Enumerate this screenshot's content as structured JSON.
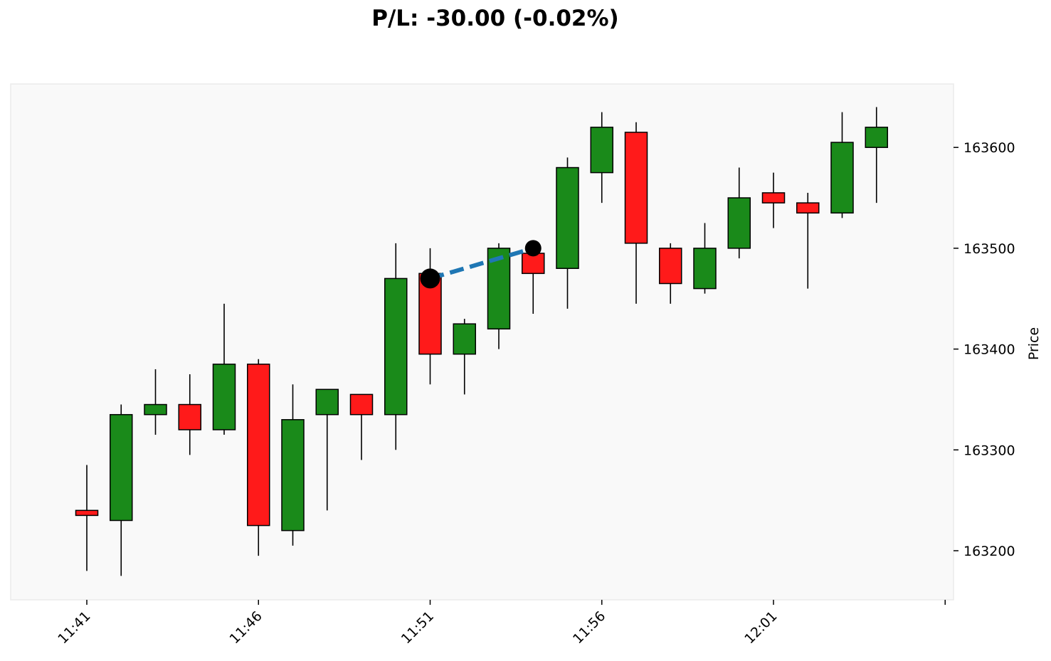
{
  "chart_data": {
    "type": "candlestick",
    "title": "P/L: -30.00 (-0.02%)",
    "xlabel": "",
    "ylabel": "Price",
    "ylim": [
      163150,
      163665
    ],
    "y_ticks": [
      163200,
      163300,
      163400,
      163500,
      163600
    ],
    "x_tick_labels": [
      "11:41",
      "11:46",
      "11:51",
      "11:56",
      "12:01"
    ],
    "grid": false,
    "colors": {
      "up": "#1a8a1a",
      "down": "#ff1a1a",
      "trade_line": "#1f77b4",
      "marker": "#000000",
      "plot_bg": "#f9f9f9"
    },
    "candles": [
      {
        "time": "11:41",
        "open": 163240,
        "high": 163285,
        "low": 163180,
        "close": 163235
      },
      {
        "time": "11:42",
        "open": 163230,
        "high": 163345,
        "low": 163175,
        "close": 163335
      },
      {
        "time": "11:43",
        "open": 163335,
        "high": 163380,
        "low": 163315,
        "close": 163345
      },
      {
        "time": "11:44",
        "open": 163345,
        "high": 163375,
        "low": 163295,
        "close": 163320
      },
      {
        "time": "11:45",
        "open": 163320,
        "high": 163445,
        "low": 163315,
        "close": 163385
      },
      {
        "time": "11:46",
        "open": 163385,
        "high": 163390,
        "low": 163195,
        "close": 163225
      },
      {
        "time": "11:47",
        "open": 163220,
        "high": 163365,
        "low": 163205,
        "close": 163330
      },
      {
        "time": "11:48",
        "open": 163335,
        "high": 163360,
        "low": 163240,
        "close": 163360
      },
      {
        "time": "11:49",
        "open": 163355,
        "high": 163355,
        "low": 163290,
        "close": 163335
      },
      {
        "time": "11:50",
        "open": 163335,
        "high": 163505,
        "low": 163300,
        "close": 163470
      },
      {
        "time": "11:51",
        "open": 163475,
        "high": 163500,
        "low": 163365,
        "close": 163395
      },
      {
        "time": "11:52",
        "open": 163395,
        "high": 163430,
        "low": 163355,
        "close": 163425
      },
      {
        "time": "11:53",
        "open": 163420,
        "high": 163505,
        "low": 163400,
        "close": 163500
      },
      {
        "time": "11:54",
        "open": 163495,
        "high": 163495,
        "low": 163435,
        "close": 163475
      },
      {
        "time": "11:55",
        "open": 163480,
        "high": 163590,
        "low": 163440,
        "close": 163580
      },
      {
        "time": "11:56",
        "open": 163575,
        "high": 163635,
        "low": 163545,
        "close": 163620
      },
      {
        "time": "11:57",
        "open": 163615,
        "high": 163625,
        "low": 163445,
        "close": 163505
      },
      {
        "time": "11:58",
        "open": 163500,
        "high": 163505,
        "low": 163445,
        "close": 163465
      },
      {
        "time": "11:59",
        "open": 163460,
        "high": 163525,
        "low": 163455,
        "close": 163500
      },
      {
        "time": "12:00",
        "open": 163500,
        "high": 163580,
        "low": 163490,
        "close": 163550
      },
      {
        "time": "12:01",
        "open": 163555,
        "high": 163575,
        "low": 163520,
        "close": 163545
      },
      {
        "time": "12:02",
        "open": 163545,
        "high": 163555,
        "low": 163460,
        "close": 163535
      },
      {
        "time": "12:03",
        "open": 163535,
        "high": 163635,
        "low": 163530,
        "close": 163605
      },
      {
        "time": "12:04",
        "open": 163600,
        "high": 163640,
        "low": 163545,
        "close": 163620
      }
    ],
    "trade": {
      "entry": {
        "time": "11:51",
        "price": 163470
      },
      "exit": {
        "time": "11:54",
        "price": 163500
      }
    }
  }
}
